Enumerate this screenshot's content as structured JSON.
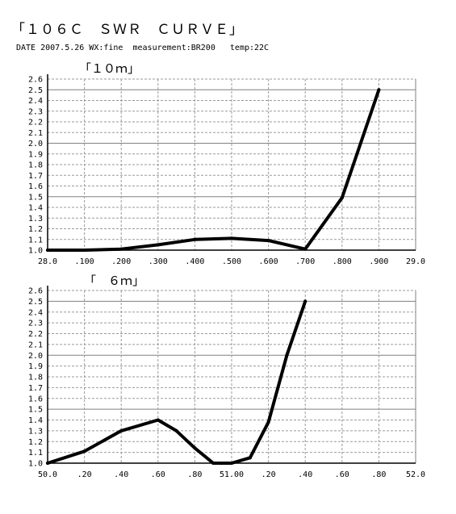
{
  "page": {
    "title": "「１０６Ｃ　ＳＷＲ　ＣＵＲＶＥ」",
    "info": "DATE 2007.5.26 WX:fine  measurement:BR200   temp:22C"
  },
  "colors": {
    "line": "#000000",
    "grid_major": "#808080",
    "grid_minor": "#9a9a9a",
    "axis": "#000000"
  },
  "chart_data": [
    {
      "type": "line",
      "title": "「１０ｍ」",
      "grid": true,
      "xlim": [
        28.0,
        29.0
      ],
      "ylim": [
        1.0,
        2.6
      ],
      "x_ticks": [
        28.0,
        28.1,
        28.2,
        28.3,
        28.4,
        28.5,
        28.6,
        28.7,
        28.8,
        28.9,
        29.0
      ],
      "x_tick_labels": [
        "28.0",
        ".100",
        ".200",
        ".300",
        ".400",
        ".500",
        ".600",
        ".700",
        ".800",
        ".900",
        "29.0"
      ],
      "y_ticks": [
        1.0,
        1.1,
        1.2,
        1.3,
        1.4,
        1.5,
        1.6,
        1.7,
        1.8,
        1.9,
        2.0,
        2.1,
        2.2,
        2.3,
        2.4,
        2.5,
        2.6
      ],
      "y_tick_labels": [
        "1.0",
        "1.1",
        "1.2",
        "1.3",
        "1.4",
        "1.5",
        "1.6",
        "1.7",
        "1.8",
        "1.9",
        "2.0",
        "2.1",
        "2.2",
        "2.3",
        "2.4",
        "2.5",
        "2.6"
      ],
      "y_major": [
        1.5,
        2.0,
        2.5
      ],
      "series": [
        {
          "x": [
            28.0,
            28.1,
            28.2,
            28.3,
            28.4,
            28.5,
            28.6,
            28.7,
            28.8,
            28.9
          ],
          "values": [
            1.0,
            1.0,
            1.01,
            1.05,
            1.1,
            1.11,
            1.09,
            1.01,
            1.49,
            2.5
          ]
        }
      ]
    },
    {
      "type": "line",
      "title": "「　６ｍ」",
      "grid": true,
      "xlim": [
        50.0,
        52.0
      ],
      "ylim": [
        1.0,
        2.6
      ],
      "x_ticks": [
        50.0,
        50.2,
        50.4,
        50.6,
        50.8,
        51.0,
        51.2,
        51.4,
        51.6,
        51.8,
        52.0
      ],
      "x_tick_labels": [
        "50.0",
        ".20",
        ".40",
        ".60",
        ".80",
        "51.00",
        ".20",
        ".40",
        ".60",
        ".80",
        "52.0"
      ],
      "y_ticks": [
        1.0,
        1.1,
        1.2,
        1.3,
        1.4,
        1.5,
        1.6,
        1.7,
        1.8,
        1.9,
        2.0,
        2.1,
        2.2,
        2.3,
        2.4,
        2.5,
        2.6
      ],
      "y_tick_labels": [
        "1.0",
        "1.1",
        "1.2",
        "1.3",
        "1.4",
        "1.5",
        "1.6",
        "1.7",
        "1.8",
        "1.9",
        "2.0",
        "2.1",
        "2.2",
        "2.3",
        "2.4",
        "2.5",
        "2.6"
      ],
      "y_major": [
        1.5,
        2.0,
        2.5
      ],
      "series": [
        {
          "x": [
            50.0,
            50.2,
            50.4,
            50.6,
            50.7,
            50.8,
            50.9,
            51.0,
            51.1,
            51.2,
            51.3,
            51.4
          ],
          "values": [
            1.0,
            1.11,
            1.3,
            1.4,
            1.3,
            1.14,
            1.0,
            1.0,
            1.05,
            1.38,
            2.0,
            2.5
          ]
        }
      ]
    }
  ]
}
